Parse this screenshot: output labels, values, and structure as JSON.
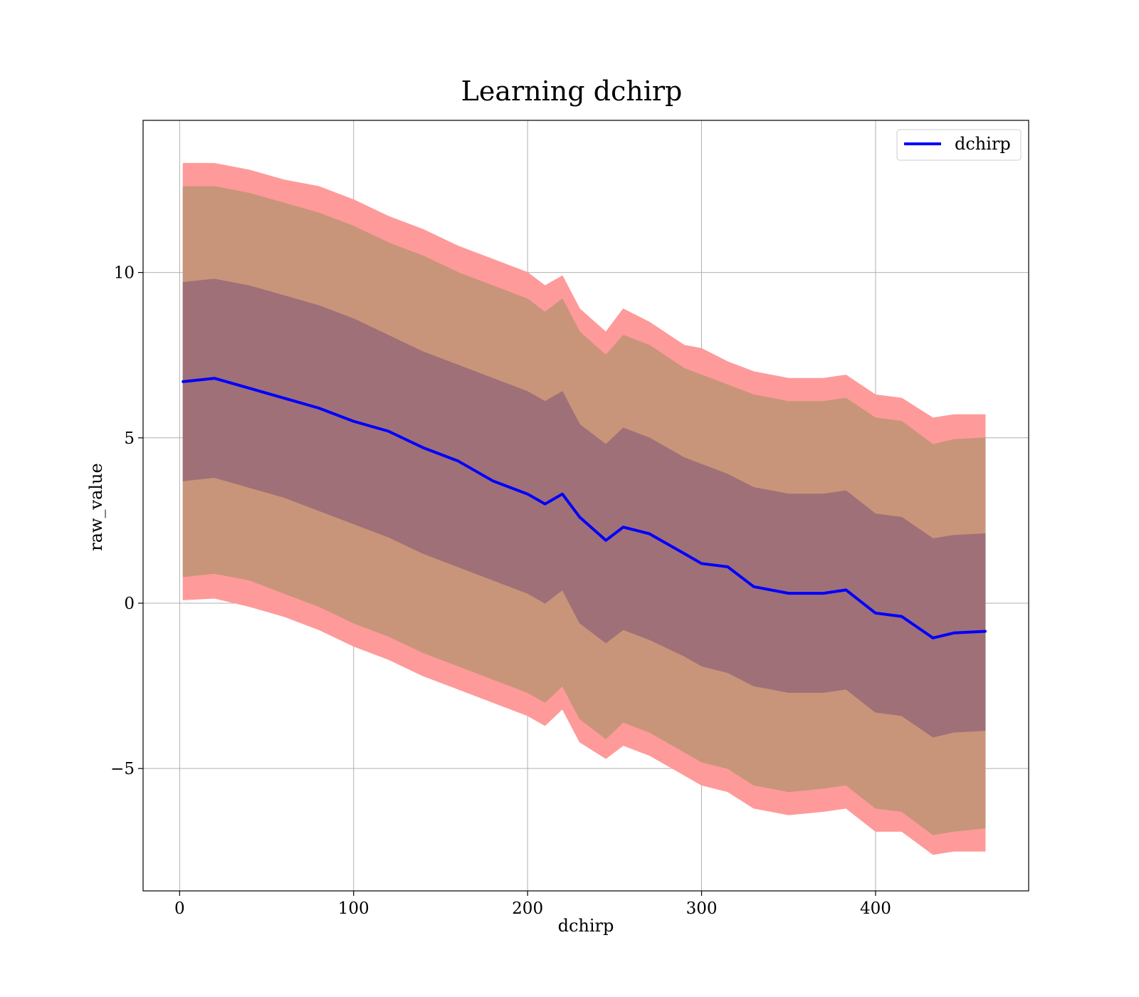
{
  "chart_data": {
    "type": "area",
    "title": "Learning dchirp",
    "xlabel": "dchirp",
    "ylabel": "raw_value",
    "xlim": [
      -21,
      488
    ],
    "ylim": [
      -8.7,
      14.6
    ],
    "xticks": [
      0,
      100,
      200,
      300,
      400
    ],
    "xtick_labels": [
      "0",
      "100",
      "200",
      "300",
      "400"
    ],
    "yticks": [
      -5,
      0,
      5,
      10
    ],
    "ytick_labels": [
      "−5",
      "0",
      "5",
      "10"
    ],
    "grid": true,
    "legend": {
      "placement": "top-right",
      "entries": [
        "dchirp"
      ]
    },
    "colors": {
      "mean_line": "#0000ff",
      "band_outer": "#ff9a9a",
      "band_middle": "#c8957a",
      "band_inner": "#a07078",
      "grid": "#b0b0b0"
    },
    "x": [
      2,
      20,
      40,
      60,
      80,
      100,
      120,
      140,
      160,
      180,
      200,
      210,
      220,
      230,
      245,
      255,
      270,
      290,
      300,
      315,
      330,
      350,
      370,
      383,
      400,
      415,
      433,
      445,
      463
    ],
    "series": [
      {
        "name": "dchirp",
        "values": [
          6.7,
          6.8,
          6.5,
          6.2,
          5.9,
          5.5,
          5.2,
          4.7,
          4.3,
          3.7,
          3.3,
          3.0,
          3.3,
          2.6,
          1.9,
          2.3,
          2.1,
          1.5,
          1.2,
          1.1,
          0.5,
          0.3,
          0.3,
          0.4,
          -0.3,
          -0.4,
          -1.05,
          -0.9,
          -0.85
        ]
      }
    ],
    "bands": [
      {
        "level": "outer",
        "upper": [
          13.3,
          13.3,
          13.1,
          12.8,
          12.6,
          12.2,
          11.7,
          11.3,
          10.8,
          10.4,
          10.0,
          9.6,
          9.9,
          8.9,
          8.2,
          8.9,
          8.5,
          7.8,
          7.7,
          7.3,
          7.0,
          6.8,
          6.8,
          6.9,
          6.3,
          6.2,
          5.6,
          5.7,
          5.7
        ],
        "lower": [
          0.1,
          0.15,
          -0.1,
          -0.4,
          -0.8,
          -1.3,
          -1.7,
          -2.2,
          -2.6,
          -3.0,
          -3.4,
          -3.7,
          -3.2,
          -4.2,
          -4.7,
          -4.3,
          -4.6,
          -5.2,
          -5.5,
          -5.7,
          -6.2,
          -6.4,
          -6.3,
          -6.2,
          -6.9,
          -6.9,
          -7.6,
          -7.5,
          -7.5
        ]
      },
      {
        "level": "middle",
        "upper": [
          12.6,
          12.6,
          12.4,
          12.1,
          11.8,
          11.4,
          10.9,
          10.5,
          10.0,
          9.6,
          9.2,
          8.8,
          9.2,
          8.2,
          7.5,
          8.1,
          7.8,
          7.1,
          6.9,
          6.6,
          6.3,
          6.1,
          6.1,
          6.2,
          5.6,
          5.5,
          4.8,
          4.95,
          5.0
        ],
        "lower": [
          0.8,
          0.9,
          0.7,
          0.3,
          -0.1,
          -0.6,
          -1.0,
          -1.5,
          -1.9,
          -2.3,
          -2.7,
          -3.0,
          -2.5,
          -3.5,
          -4.1,
          -3.6,
          -3.9,
          -4.5,
          -4.8,
          -5.0,
          -5.5,
          -5.7,
          -5.6,
          -5.5,
          -6.2,
          -6.3,
          -7.0,
          -6.9,
          -6.8
        ]
      },
      {
        "level": "inner",
        "upper": [
          9.7,
          9.8,
          9.6,
          9.3,
          9.0,
          8.6,
          8.1,
          7.6,
          7.2,
          6.8,
          6.4,
          6.1,
          6.4,
          5.4,
          4.8,
          5.3,
          5.0,
          4.4,
          4.2,
          3.9,
          3.5,
          3.3,
          3.3,
          3.4,
          2.7,
          2.6,
          1.95,
          2.05,
          2.1
        ],
        "lower": [
          3.7,
          3.8,
          3.5,
          3.2,
          2.8,
          2.4,
          2.0,
          1.5,
          1.1,
          0.7,
          0.3,
          0.0,
          0.4,
          -0.6,
          -1.2,
          -0.8,
          -1.1,
          -1.6,
          -1.9,
          -2.1,
          -2.5,
          -2.7,
          -2.7,
          -2.6,
          -3.3,
          -3.4,
          -4.05,
          -3.9,
          -3.85
        ]
      }
    ]
  }
}
